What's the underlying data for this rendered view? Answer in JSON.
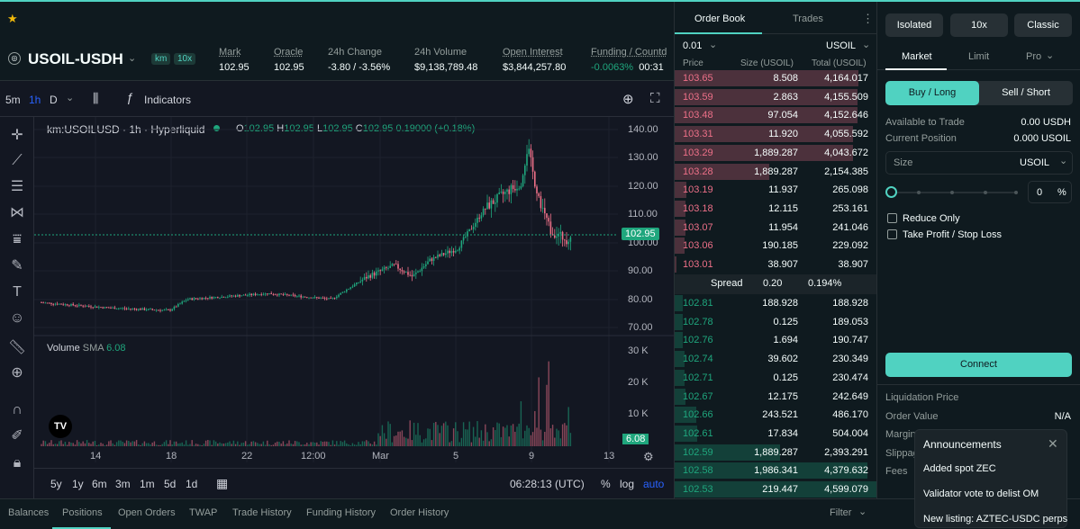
{
  "header": {
    "symbol": "USOIL-USDH",
    "badges": [
      "km",
      "10x"
    ],
    "stats": [
      {
        "label": "Mark",
        "value": "102.95"
      },
      {
        "label": "Oracle",
        "value": "102.95"
      },
      {
        "label": "24h Change",
        "value": "-3.80 / -3.56%"
      },
      {
        "label": "24h Volume",
        "value": "$9,138,789.48"
      },
      {
        "label": "Open Interest",
        "value": "$3,844,257.80"
      },
      {
        "label": "Funding / Countd",
        "value": "-0.0063%",
        "value2": "00:31"
      }
    ]
  },
  "chart_toolbar": {
    "intervals": [
      "5m",
      "1h",
      "D"
    ],
    "indicators_label": "Indicators"
  },
  "chart": {
    "legend_title": "km:USOILUSD · 1h · Hyperliquid",
    "ohlc": {
      "o_label": "O",
      "o": "102.95",
      "h_label": "H",
      "h": "102.95",
      "l_label": "L",
      "l": "102.95",
      "c_label": "C",
      "c": "102.95",
      "change": "0.19000 (+0.18%)"
    },
    "price_ticks": [
      "140.00",
      "130.00",
      "120.00",
      "110.00",
      "100.00",
      "90.00",
      "80.00",
      "70.00"
    ],
    "last_price": "102.95",
    "volume_label": "Volume",
    "volume_sma_label": "SMA",
    "volume_sma_value": "6.08",
    "volume_ticks": [
      "30 K",
      "20 K",
      "10 K"
    ],
    "volume_last": "6.08",
    "time_ticks": [
      "14",
      "18",
      "22",
      "12:00",
      "Mar",
      "5",
      "9",
      "13"
    ],
    "ranges": [
      "5y",
      "1y",
      "6m",
      "3m",
      "1m",
      "5d",
      "1d"
    ],
    "clock": "06:28:13 (UTC)",
    "scale_opts": [
      "%",
      "log",
      "auto"
    ],
    "tv_logo": "TV"
  },
  "orderbook": {
    "tabs": [
      "Order Book",
      "Trades"
    ],
    "tick_size": "0.01",
    "unit": "USOIL",
    "columns": [
      "Price",
      "Size (USOIL)",
      "Total (USOIL)"
    ],
    "asks": [
      [
        "103.65",
        "8.508",
        "4,164.017"
      ],
      [
        "103.59",
        "2.863",
        "4,155.509"
      ],
      [
        "103.48",
        "97.054",
        "4,152.646"
      ],
      [
        "103.31",
        "11.920",
        "4,055.592"
      ],
      [
        "103.29",
        "1,889.287",
        "4,043.672"
      ],
      [
        "103.28",
        "1,889.287",
        "2,154.385"
      ],
      [
        "103.19",
        "11.937",
        "265.098"
      ],
      [
        "103.18",
        "12.115",
        "253.161"
      ],
      [
        "103.07",
        "11.954",
        "241.046"
      ],
      [
        "103.06",
        "190.185",
        "229.092"
      ],
      [
        "103.01",
        "38.907",
        "38.907"
      ]
    ],
    "spread_label": "Spread",
    "spread_value": "0.20",
    "spread_pct": "0.194%",
    "bids": [
      [
        "102.81",
        "188.928",
        "188.928"
      ],
      [
        "102.78",
        "0.125",
        "189.053"
      ],
      [
        "102.76",
        "1.694",
        "190.747"
      ],
      [
        "102.74",
        "39.602",
        "230.349"
      ],
      [
        "102.71",
        "0.125",
        "230.474"
      ],
      [
        "102.67",
        "12.175",
        "242.649"
      ],
      [
        "102.66",
        "243.521",
        "486.170"
      ],
      [
        "102.61",
        "17.834",
        "504.004"
      ],
      [
        "102.59",
        "1,889.287",
        "2,393.291"
      ],
      [
        "102.58",
        "1,986.341",
        "4,379.632"
      ],
      [
        "102.53",
        "219.447",
        "4,599.079"
      ]
    ]
  },
  "trade": {
    "margin_mode": "Isolated",
    "leverage": "10x",
    "style": "Classic",
    "order_tabs": [
      "Market",
      "Limit",
      "Pro"
    ],
    "buy_label": "Buy / Long",
    "sell_label": "Sell / Short",
    "available_label": "Available to Trade",
    "available_value": "0.00 USDH",
    "position_label": "Current Position",
    "position_value": "0.000 USOIL",
    "size_placeholder": "Size",
    "size_unit": "USOIL",
    "slider_value": "0",
    "slider_unit": "%",
    "reduce_only": "Reduce Only",
    "tp_sl": "Take Profit / Stop Loss",
    "connect_label": "Connect",
    "info": [
      {
        "label": "Liquidation Price",
        "value": ""
      },
      {
        "label": "Order Value",
        "value": "N/A"
      },
      {
        "label": "Margin",
        "value": ""
      },
      {
        "label": "Slippage",
        "value": ""
      },
      {
        "label": "Fees",
        "value": ""
      }
    ]
  },
  "announcements": {
    "title": "Announcements",
    "items": [
      "Added spot ZEC",
      "Validator vote to delist OM",
      "New listing: AZTEC-USDC perps"
    ]
  },
  "bottom_tabs": [
    "Balances",
    "Positions",
    "Open Orders",
    "TWAP",
    "Trade History",
    "Funding History",
    "Order History"
  ],
  "filter_label": "Filter",
  "colors": {
    "accent": "#50d2c1",
    "up": "#1fa67d",
    "down": "#ed7088",
    "panel": "#0f1a1f",
    "chart_bg": "#131722"
  }
}
